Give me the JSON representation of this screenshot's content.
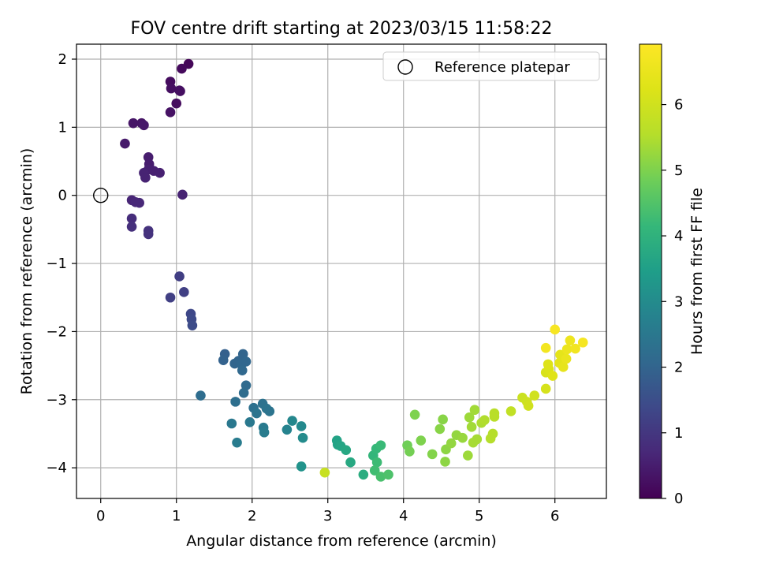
{
  "chart_data": {
    "type": "scatter",
    "title": "FOV centre drift starting at 2023/03/15 11:58:22",
    "xlabel": "Angular distance from reference (arcmin)",
    "ylabel": "Rotation from reference (arcmin)",
    "xlim": [
      -0.32,
      6.68
    ],
    "ylim": [
      -4.45,
      2.22
    ],
    "xticks": [
      0,
      1,
      2,
      3,
      4,
      5,
      6
    ],
    "yticks": [
      2,
      1,
      0,
      -1,
      -2,
      -3,
      -4
    ],
    "xtick_labels": [
      "0",
      "1",
      "2",
      "3",
      "4",
      "5",
      "6"
    ],
    "ytick_labels": [
      "2",
      "1",
      "0",
      "−1",
      "−2",
      "−3",
      "−4"
    ],
    "grid": true,
    "legend": {
      "position": "upper right",
      "entries": [
        {
          "label": "Reference platepar",
          "marker": "open-circle"
        }
      ]
    },
    "reference_point": {
      "x": 0,
      "y": 0
    },
    "colorbar": {
      "label": "Hours from first FF file",
      "colormap": "viridis",
      "range": [
        0,
        6.92
      ],
      "ticks": [
        0,
        1,
        2,
        3,
        4,
        5,
        6
      ],
      "tick_labels": [
        "0",
        "1",
        "2",
        "3",
        "4",
        "5",
        "6"
      ]
    },
    "points": [
      {
        "x": 1.0,
        "y": 1.35,
        "h": 0.2
      },
      {
        "x": 1.05,
        "y": 1.53,
        "h": 0.25
      },
      {
        "x": 0.92,
        "y": 1.22,
        "h": 0.3
      },
      {
        "x": 1.16,
        "y": 1.93,
        "h": 0.1
      },
      {
        "x": 1.07,
        "y": 1.86,
        "h": 0.15
      },
      {
        "x": 0.92,
        "y": 1.67,
        "h": 0.2
      },
      {
        "x": 0.93,
        "y": 1.57,
        "h": 0.25
      },
      {
        "x": 1.04,
        "y": 1.54,
        "h": 0.25
      },
      {
        "x": 0.43,
        "y": 1.06,
        "h": 0.35
      },
      {
        "x": 0.54,
        "y": 1.06,
        "h": 0.35
      },
      {
        "x": 0.57,
        "y": 1.03,
        "h": 0.4
      },
      {
        "x": 0.32,
        "y": 0.76,
        "h": 0.45
      },
      {
        "x": 0.63,
        "y": 0.56,
        "h": 0.5
      },
      {
        "x": 0.64,
        "y": 0.46,
        "h": 0.5
      },
      {
        "x": 0.63,
        "y": 0.38,
        "h": 0.55
      },
      {
        "x": 0.7,
        "y": 0.36,
        "h": 0.55
      },
      {
        "x": 0.78,
        "y": 0.33,
        "h": 0.55
      },
      {
        "x": 0.57,
        "y": 0.33,
        "h": 0.6
      },
      {
        "x": 0.59,
        "y": 0.26,
        "h": 0.6
      },
      {
        "x": 1.08,
        "y": 0.01,
        "h": 0.6
      },
      {
        "x": 0.41,
        "y": -0.07,
        "h": 0.65
      },
      {
        "x": 0.46,
        "y": -0.1,
        "h": 0.7
      },
      {
        "x": 0.51,
        "y": -0.11,
        "h": 0.7
      },
      {
        "x": 0.41,
        "y": -0.34,
        "h": 0.8
      },
      {
        "x": 0.41,
        "y": -0.46,
        "h": 0.85
      },
      {
        "x": 0.63,
        "y": -0.52,
        "h": 0.9
      },
      {
        "x": 0.63,
        "y": -0.57,
        "h": 0.9
      },
      {
        "x": 1.04,
        "y": -1.19,
        "h": 1.15
      },
      {
        "x": 1.1,
        "y": -1.42,
        "h": 1.2
      },
      {
        "x": 0.92,
        "y": -1.5,
        "h": 1.2
      },
      {
        "x": 1.19,
        "y": -1.74,
        "h": 1.35
      },
      {
        "x": 1.2,
        "y": -1.82,
        "h": 1.4
      },
      {
        "x": 1.21,
        "y": -1.91,
        "h": 1.45
      },
      {
        "x": 1.64,
        "y": -2.33,
        "h": 1.9
      },
      {
        "x": 1.62,
        "y": -2.42,
        "h": 1.95
      },
      {
        "x": 1.77,
        "y": -2.47,
        "h": 2.0
      },
      {
        "x": 1.82,
        "y": -2.43,
        "h": 2.0
      },
      {
        "x": 1.88,
        "y": -2.33,
        "h": 2.0
      },
      {
        "x": 1.86,
        "y": -2.48,
        "h": 2.05
      },
      {
        "x": 1.92,
        "y": -2.44,
        "h": 2.05
      },
      {
        "x": 1.87,
        "y": -2.57,
        "h": 2.1
      },
      {
        "x": 1.92,
        "y": -2.79,
        "h": 2.15
      },
      {
        "x": 1.89,
        "y": -2.9,
        "h": 2.2
      },
      {
        "x": 1.32,
        "y": -2.94,
        "h": 2.2
      },
      {
        "x": 1.78,
        "y": -3.03,
        "h": 2.25
      },
      {
        "x": 2.02,
        "y": -3.12,
        "h": 2.3
      },
      {
        "x": 2.14,
        "y": -3.06,
        "h": 2.35
      },
      {
        "x": 2.19,
        "y": -3.13,
        "h": 2.4
      },
      {
        "x": 2.23,
        "y": -3.17,
        "h": 2.4
      },
      {
        "x": 2.06,
        "y": -3.2,
        "h": 2.4
      },
      {
        "x": 1.97,
        "y": -3.33,
        "h": 2.5
      },
      {
        "x": 1.73,
        "y": -3.35,
        "h": 2.5
      },
      {
        "x": 2.15,
        "y": -3.41,
        "h": 2.55
      },
      {
        "x": 2.16,
        "y": -3.48,
        "h": 2.6
      },
      {
        "x": 1.8,
        "y": -3.63,
        "h": 2.6
      },
      {
        "x": 2.46,
        "y": -3.44,
        "h": 2.8
      },
      {
        "x": 2.53,
        "y": -3.31,
        "h": 2.9
      },
      {
        "x": 2.65,
        "y": -3.39,
        "h": 2.95
      },
      {
        "x": 2.67,
        "y": -3.56,
        "h": 3.0
      },
      {
        "x": 2.65,
        "y": -3.98,
        "h": 3.2
      },
      {
        "x": 3.12,
        "y": -3.6,
        "h": 3.6
      },
      {
        "x": 3.13,
        "y": -3.66,
        "h": 3.6
      },
      {
        "x": 3.17,
        "y": -3.68,
        "h": 3.65
      },
      {
        "x": 3.24,
        "y": -3.74,
        "h": 3.7
      },
      {
        "x": 3.3,
        "y": -3.92,
        "h": 3.75
      },
      {
        "x": 3.47,
        "y": -4.1,
        "h": 3.85
      },
      {
        "x": 3.6,
        "y": -3.82,
        "h": 4.1
      },
      {
        "x": 3.64,
        "y": -3.72,
        "h": 4.15
      },
      {
        "x": 3.7,
        "y": -3.67,
        "h": 4.2
      },
      {
        "x": 3.65,
        "y": -3.92,
        "h": 4.25
      },
      {
        "x": 3.62,
        "y": -4.04,
        "h": 4.3
      },
      {
        "x": 3.7,
        "y": -4.13,
        "h": 4.4
      },
      {
        "x": 3.8,
        "y": -4.1,
        "h": 4.45
      },
      {
        "x": 2.96,
        "y": -4.07,
        "h": 5.85
      },
      {
        "x": 4.05,
        "y": -3.67,
        "h": 4.85
      },
      {
        "x": 4.08,
        "y": -3.76,
        "h": 4.9
      },
      {
        "x": 4.15,
        "y": -3.22,
        "h": 5.0
      },
      {
        "x": 4.23,
        "y": -3.6,
        "h": 5.0
      },
      {
        "x": 4.38,
        "y": -3.8,
        "h": 5.05
      },
      {
        "x": 4.48,
        "y": -3.43,
        "h": 5.1
      },
      {
        "x": 4.52,
        "y": -3.29,
        "h": 5.1
      },
      {
        "x": 4.56,
        "y": -3.73,
        "h": 5.15
      },
      {
        "x": 4.55,
        "y": -3.91,
        "h": 5.15
      },
      {
        "x": 4.63,
        "y": -3.64,
        "h": 5.2
      },
      {
        "x": 4.7,
        "y": -3.52,
        "h": 5.2
      },
      {
        "x": 4.78,
        "y": -3.56,
        "h": 5.25
      },
      {
        "x": 4.85,
        "y": -3.82,
        "h": 5.3
      },
      {
        "x": 4.87,
        "y": -3.26,
        "h": 5.3
      },
      {
        "x": 4.9,
        "y": -3.4,
        "h": 5.35
      },
      {
        "x": 4.94,
        "y": -3.15,
        "h": 5.35
      },
      {
        "x": 4.97,
        "y": -3.58,
        "h": 5.4
      },
      {
        "x": 4.92,
        "y": -3.63,
        "h": 5.4
      },
      {
        "x": 5.03,
        "y": -3.34,
        "h": 5.45
      },
      {
        "x": 5.07,
        "y": -3.3,
        "h": 5.5
      },
      {
        "x": 5.15,
        "y": -3.57,
        "h": 5.55
      },
      {
        "x": 5.18,
        "y": -3.5,
        "h": 5.55
      },
      {
        "x": 5.2,
        "y": -3.25,
        "h": 5.6
      },
      {
        "x": 5.2,
        "y": -3.2,
        "h": 5.6
      },
      {
        "x": 5.42,
        "y": -3.17,
        "h": 5.75
      },
      {
        "x": 5.57,
        "y": -2.97,
        "h": 5.9
      },
      {
        "x": 5.63,
        "y": -3.03,
        "h": 5.95
      },
      {
        "x": 5.65,
        "y": -3.09,
        "h": 6.0
      },
      {
        "x": 5.73,
        "y": -2.94,
        "h": 6.0
      },
      {
        "x": 5.88,
        "y": -2.84,
        "h": 6.1
      },
      {
        "x": 5.88,
        "y": -2.6,
        "h": 6.15
      },
      {
        "x": 5.92,
        "y": -2.55,
        "h": 6.2
      },
      {
        "x": 5.91,
        "y": -2.48,
        "h": 6.25
      },
      {
        "x": 5.97,
        "y": -2.65,
        "h": 6.3
      },
      {
        "x": 6.06,
        "y": -2.46,
        "h": 6.35
      },
      {
        "x": 6.07,
        "y": -2.34,
        "h": 6.4
      },
      {
        "x": 6.11,
        "y": -2.52,
        "h": 6.45
      },
      {
        "x": 6.15,
        "y": -2.4,
        "h": 6.5
      },
      {
        "x": 6.16,
        "y": -2.26,
        "h": 6.55
      },
      {
        "x": 6.2,
        "y": -2.13,
        "h": 6.6
      },
      {
        "x": 6.27,
        "y": -2.25,
        "h": 6.65
      },
      {
        "x": 6.37,
        "y": -2.16,
        "h": 6.75
      },
      {
        "x": 5.88,
        "y": -2.24,
        "h": 6.7
      },
      {
        "x": 6.0,
        "y": -1.97,
        "h": 6.8
      }
    ]
  }
}
